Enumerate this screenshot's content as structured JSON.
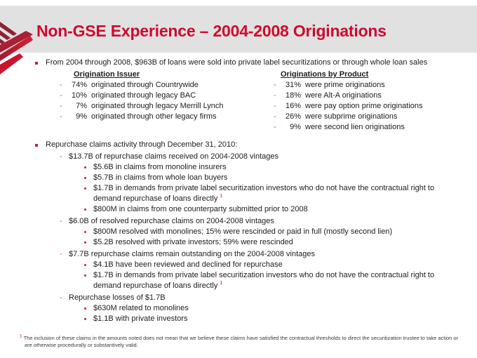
{
  "slide": {
    "title": "Non-GSE Experience – 2004-2008 Originations",
    "intro_bullet": "From 2004 through 2008, $963B of loans were sold into private label securitizations or through whole loan sales",
    "columns": {
      "left": {
        "heading": "Origination Issuer",
        "items": [
          {
            "pct": "74%",
            "text": "originated through Countrywide"
          },
          {
            "pct": "10%",
            "text": "originated through legacy BAC"
          },
          {
            "pct": "7%",
            "text": "originated through legacy Merrill Lynch"
          },
          {
            "pct": "9%",
            "text": "originated through other legacy firms"
          }
        ]
      },
      "right": {
        "heading": "Originations by Product",
        "items": [
          {
            "pct": "31%",
            "text": "were prime originations"
          },
          {
            "pct": "18%",
            "text": "were Alt-A  originations"
          },
          {
            "pct": "16%",
            "text": "were pay option prime originations"
          },
          {
            "pct": "26%",
            "text": "were subprime originations"
          },
          {
            "pct": "9%",
            "text": "were second lien originations"
          }
        ]
      }
    },
    "repurchase": {
      "heading": "Repurchase claims activity through December 31, 2010:",
      "groups": [
        {
          "label": "$13.7B of repurchase claims received on 2004-2008 vintages",
          "items": [
            {
              "text": "$5.6B in claims from monoline insurers"
            },
            {
              "text": "$5.7B in claims from whole loan buyers"
            },
            {
              "text": "$1.7B in demands from private label securitization investors who do not have the contractual right to demand repurchase of loans directly",
              "footnote_ref": "1"
            },
            {
              "text": "$800M in claims from one counterparty submitted prior to 2008"
            }
          ]
        },
        {
          "label": "$6.0B of resolved repurchase claims on 2004-2008 vintages",
          "items": [
            {
              "text": "$800M resolved with monolines; 15% were rescinded or paid in full (mostly second lien)"
            },
            {
              "text": "$5.2B resolved with private investors; 59% were rescinded"
            }
          ]
        },
        {
          "label": "$7.7B repurchase claims remain outstanding on the 2004-2008 vintages",
          "items": [
            {
              "text": "$4.1B have been reviewed and declined for repurchase"
            },
            {
              "text": "$1.7B in demands from private label securitization investors who do not have the contractual right to demand repurchase of loans directly",
              "footnote_ref": "1"
            }
          ]
        },
        {
          "label": "Repurchase losses of $1.7B",
          "items": [
            {
              "text": "$630M related to monolines"
            },
            {
              "text": "$1.1B with private investors"
            }
          ]
        }
      ]
    },
    "footnote": {
      "ref": "1",
      "text": "The inclusion of these claims in the amounts noted does not mean that we believe these claims have satisfied the contractual thresholds to direct the securitization trustee to take action or are otherwise procedurally or substantively valid."
    },
    "colors": {
      "accent_red": "#cf0a2c",
      "bullet_red": "#c2203a",
      "dash_red": "#d95360",
      "band_gray": "#e2e1e1",
      "text": "#1c1c1c"
    }
  }
}
